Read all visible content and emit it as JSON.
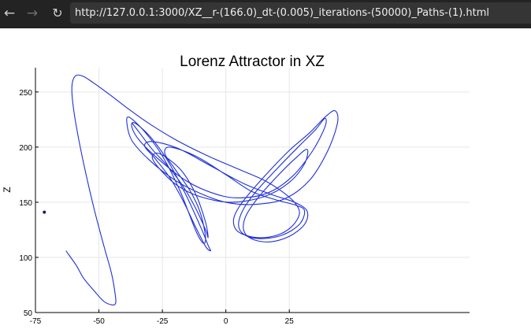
{
  "browser": {
    "url": "http://127.0.0.1:3000/XZ__r-(166.0)_dt-(0.005)_iterations-(50000)_Paths-(1).html",
    "back_icon": "arrow-left-icon",
    "forward_icon": "arrow-right-icon",
    "reload_icon": "reload-icon"
  },
  "chart_data": {
    "type": "line",
    "title": "Lorenz Attractor in XZ",
    "xlabel": "",
    "ylabel": "Z",
    "xlim": [
      -75,
      96
    ],
    "ylim": [
      50,
      272
    ],
    "xticks": [
      -75,
      -50,
      -25,
      0,
      25
    ],
    "xtick_labels": [
      "-75",
      "-50",
      "-25",
      "0",
      "25"
    ],
    "yticks": [
      50,
      100,
      150,
      200,
      250
    ],
    "ytick_labels": [
      "50",
      "100",
      "150",
      "200",
      "250"
    ],
    "grid": true,
    "line_color": "#1f2fd8",
    "start_point": {
      "x": -71.5,
      "y": 141,
      "color": "#1a1a66"
    },
    "series": [
      {
        "values": [
          [
            -63,
            106
          ],
          [
            -59,
            93
          ],
          [
            -56,
            81
          ],
          [
            -52,
            70
          ],
          [
            -48,
            60
          ],
          [
            -45,
            57
          ],
          [
            -43.5,
            58
          ],
          [
            -43.5,
            65
          ],
          [
            -45,
            85
          ],
          [
            -48,
            110
          ],
          [
            -52,
            145
          ],
          [
            -56,
            185
          ],
          [
            -59,
            220
          ],
          [
            -60.5,
            245
          ],
          [
            -60.5,
            258
          ],
          [
            -59,
            265
          ],
          [
            -56,
            264
          ],
          [
            -52,
            258
          ],
          [
            -46,
            248
          ],
          [
            -38,
            234
          ],
          [
            -30,
            221
          ],
          [
            -20,
            207
          ],
          [
            -8,
            193
          ],
          [
            5,
            180
          ],
          [
            15,
            170
          ],
          [
            22,
            160
          ],
          [
            27,
            150
          ],
          [
            29,
            140
          ],
          [
            26,
            128
          ],
          [
            20,
            120
          ],
          [
            12,
            118
          ],
          [
            5,
            123
          ],
          [
            3,
            133
          ],
          [
            5,
            145
          ],
          [
            10,
            160
          ],
          [
            17,
            178
          ],
          [
            25,
            197
          ],
          [
            33,
            213
          ],
          [
            39,
            227
          ],
          [
            43,
            233
          ],
          [
            44,
            222
          ],
          [
            40,
            196
          ],
          [
            33,
            170
          ],
          [
            23,
            153
          ],
          [
            11,
            148
          ],
          [
            0,
            150
          ],
          [
            -10,
            158
          ],
          [
            -20,
            170
          ],
          [
            -30,
            188
          ],
          [
            -37,
            206
          ],
          [
            -39,
            222
          ],
          [
            -38,
            227
          ],
          [
            -32,
            214
          ],
          [
            -25,
            192
          ],
          [
            -18,
            160
          ],
          [
            -12,
            125
          ],
          [
            -9,
            113
          ],
          [
            -8,
            118
          ],
          [
            -10,
            140
          ],
          [
            -14,
            160
          ],
          [
            -20,
            180
          ],
          [
            -24,
            194
          ],
          [
            -22,
            200
          ],
          [
            -12,
            192
          ],
          [
            0,
            175
          ],
          [
            10,
            160
          ],
          [
            20,
            152
          ],
          [
            28,
            147
          ],
          [
            31,
            142
          ],
          [
            29,
            130
          ],
          [
            22,
            120
          ],
          [
            13,
            117
          ],
          [
            7,
            121
          ],
          [
            5,
            130
          ],
          [
            7,
            144
          ],
          [
            12,
            160
          ],
          [
            20,
            180
          ],
          [
            28,
            199
          ],
          [
            35,
            215
          ],
          [
            39,
            226
          ],
          [
            39,
            218
          ],
          [
            34,
            196
          ],
          [
            26,
            173
          ],
          [
            16,
            158
          ],
          [
            4,
            154
          ],
          [
            -6,
            159
          ],
          [
            -16,
            170
          ],
          [
            -26,
            188
          ],
          [
            -34,
            206
          ],
          [
            -37,
            218
          ],
          [
            -36,
            222
          ],
          [
            -30,
            210
          ],
          [
            -23,
            188
          ],
          [
            -16,
            158
          ],
          [
            -10,
            128
          ],
          [
            -7,
            111
          ],
          [
            -6,
            106
          ],
          [
            -8,
            110
          ],
          [
            -12,
            128
          ],
          [
            -17,
            152
          ],
          [
            -22,
            172
          ],
          [
            -28,
            190
          ],
          [
            -32,
            201
          ],
          [
            -29,
            205
          ],
          [
            -19,
            199
          ],
          [
            -6,
            183
          ],
          [
            7,
            167
          ],
          [
            18,
            157
          ],
          [
            27,
            150
          ],
          [
            32,
            142
          ],
          [
            31,
            130
          ],
          [
            25,
            119
          ],
          [
            17,
            114
          ],
          [
            10,
            117
          ],
          [
            7,
            125
          ],
          [
            8,
            138
          ],
          [
            13,
            155
          ],
          [
            20,
            173
          ],
          [
            27,
            189
          ],
          [
            32,
            198
          ],
          [
            31,
            185
          ],
          [
            25,
            168
          ],
          [
            15,
            155
          ],
          [
            2,
            150
          ],
          [
            -10,
            155
          ],
          [
            -19,
            165
          ],
          [
            -26,
            180
          ],
          [
            -29,
            191
          ],
          [
            -26,
            194
          ],
          [
            -18,
            180
          ],
          [
            -12,
            158
          ],
          [
            -8,
            132
          ],
          [
            -7,
            118
          ],
          [
            -8,
            125
          ],
          [
            -12,
            145
          ],
          [
            -17,
            165
          ],
          [
            -23,
            183
          ],
          [
            -29,
            198
          ],
          [
            -34,
            213
          ],
          [
            -37,
            222
          ]
        ]
      }
    ]
  }
}
